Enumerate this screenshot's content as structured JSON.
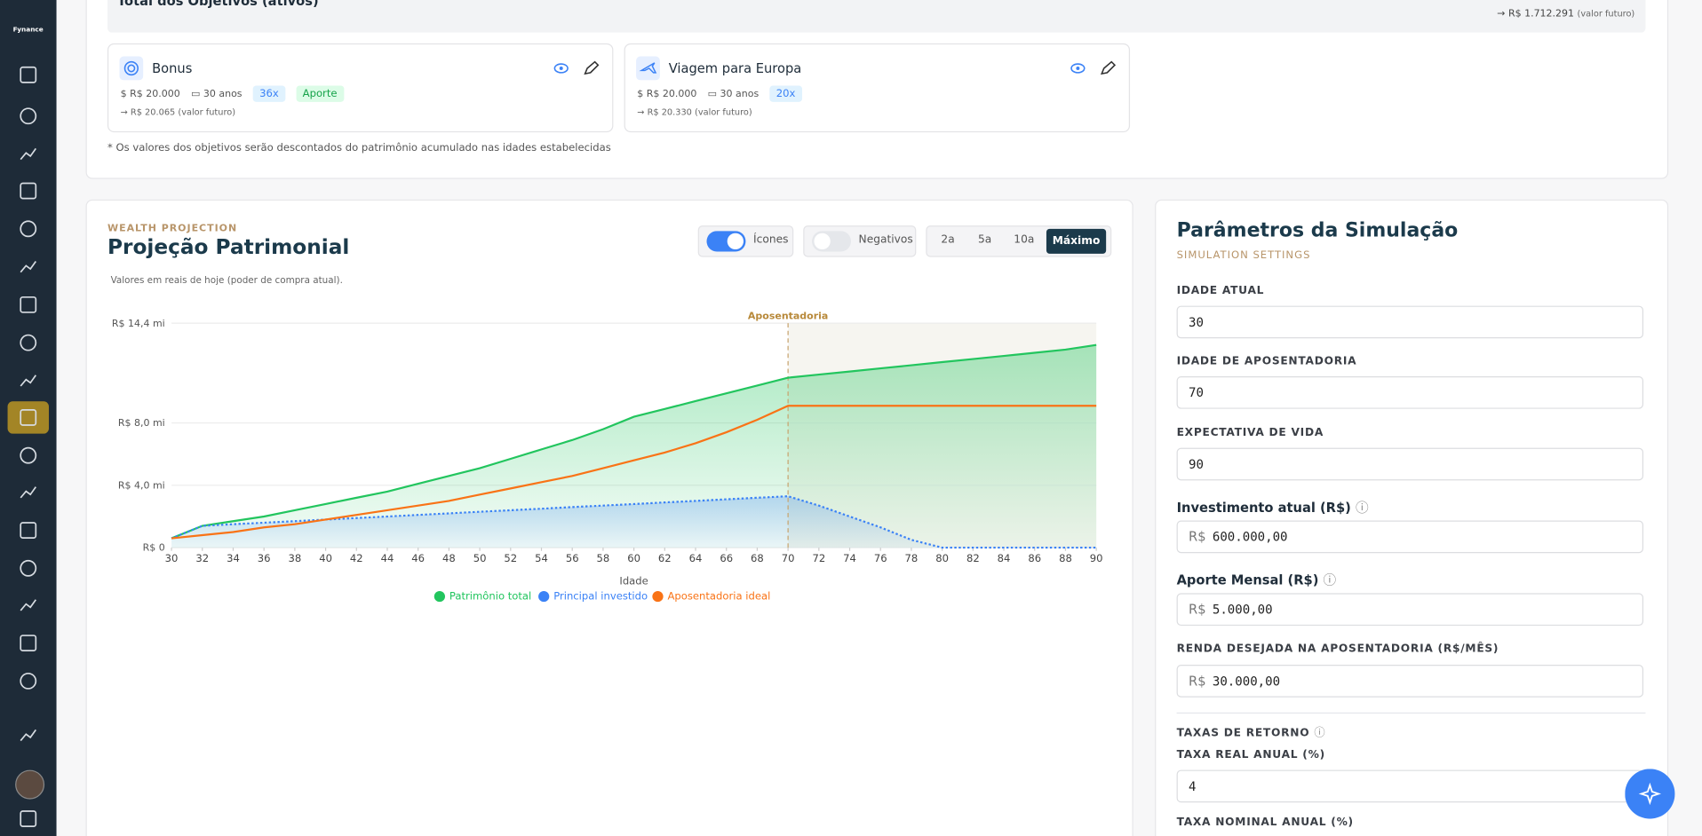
{
  "sidebar": {
    "brand": "Fynance"
  },
  "goals": {
    "title": "Total dos Objetivos (ativos)",
    "total": "→ R$ 1.712.291",
    "total_note": "(valor futuro)",
    "cards": [
      {
        "name": "Bonus",
        "amount": "R$ 20.000",
        "term": "30 anos",
        "count": "36x",
        "tag": "Aporte",
        "future": "→ R$ 20.065",
        "future_note": "(valor futuro)"
      },
      {
        "name": "Viagem para Europa",
        "amount": "R$ 20.000",
        "term": "30 anos",
        "count": "20x",
        "future": "→ R$ 20.330",
        "future_note": "(valor futuro)"
      }
    ],
    "footnote": "* Os valores dos objetivos serão descontados do patrimônio acumulado nas idades estabelecidas"
  },
  "projection": {
    "eyebrow": "WEALTH PROJECTION",
    "title": "Projeção Patrimonial",
    "toggles": [
      "Ícones",
      "Negativos"
    ],
    "ranges": [
      "2a",
      "5a",
      "10a",
      "Máximo"
    ],
    "note": "Valores em reais de hoje (poder de compra atual)."
  },
  "chart_data": {
    "type": "line",
    "x_label": "Idade",
    "x": [
      30,
      32,
      34,
      36,
      38,
      40,
      42,
      44,
      46,
      48,
      50,
      52,
      54,
      56,
      58,
      60,
      62,
      64,
      66,
      68,
      70,
      72,
      74,
      76,
      78,
      80,
      82,
      84,
      86,
      88,
      90
    ],
    "xlim": [
      30,
      90
    ],
    "xticks": [
      30,
      32,
      34,
      36,
      38,
      40,
      42,
      44,
      46,
      48,
      50,
      52,
      54,
      56,
      58,
      60,
      62,
      64,
      66,
      68,
      70,
      72,
      74,
      76,
      78,
      80,
      82,
      84,
      86,
      88,
      90
    ],
    "ylim": [
      0,
      14.4
    ],
    "yticks": [
      {
        "value": 0,
        "label": "R$ 0"
      },
      {
        "value": 4,
        "label": "R$ 4,0 mi"
      },
      {
        "value": 8,
        "label": "R$ 8,0 mi"
      },
      {
        "value": 14.4,
        "label": "R$ 14,4 mi"
      }
    ],
    "grid": true,
    "legend": "bottom",
    "annotation": {
      "text": "Aposentadoria",
      "x": 70
    },
    "series": [
      {
        "name": "Patrimônio total",
        "color": "#22c55e",
        "values": [
          0.6,
          1.4,
          1.7,
          2.0,
          2.4,
          2.8,
          3.2,
          3.6,
          4.1,
          4.6,
          5.1,
          5.7,
          6.3,
          6.9,
          7.6,
          8.4,
          8.9,
          9.4,
          9.9,
          10.4,
          10.9,
          11.1,
          11.3,
          11.5,
          11.7,
          11.9,
          12.1,
          12.3,
          12.5,
          12.7,
          13.0
        ]
      },
      {
        "name": "Principal investido",
        "color": "#3b82f6",
        "values": [
          0.6,
          1.4,
          1.5,
          1.6,
          1.7,
          1.8,
          1.9,
          2.0,
          2.1,
          2.2,
          2.3,
          2.4,
          2.5,
          2.6,
          2.7,
          2.8,
          2.9,
          3.0,
          3.1,
          3.2,
          3.3,
          2.7,
          2.0,
          1.3,
          0.5,
          0,
          0,
          0,
          0,
          0,
          0
        ]
      },
      {
        "name": "Aposentadoria ideal",
        "color": "#f97316",
        "values": [
          0.6,
          0.8,
          1.0,
          1.3,
          1.5,
          1.8,
          2.1,
          2.4,
          2.7,
          3.0,
          3.4,
          3.8,
          4.2,
          4.6,
          5.1,
          5.6,
          6.1,
          6.7,
          7.4,
          8.2,
          9.1,
          9.1,
          9.1,
          9.1,
          9.1,
          9.1,
          9.1,
          9.1,
          9.1,
          9.1,
          9.1
        ]
      }
    ]
  },
  "params": {
    "title": "Parâmetros da Simulação",
    "subtitle": "SIMULATION SETTINGS",
    "fields": [
      {
        "label": "IDADE ATUAL",
        "value": "30"
      },
      {
        "label": "IDADE DE APOSENTADORIA",
        "value": "70"
      },
      {
        "label": "EXPECTATIVA DE VIDA",
        "value": "90"
      },
      {
        "label": "Investimento atual (R$)",
        "prefix": "R$",
        "value": "600.000,00"
      },
      {
        "label": "Aporte Mensal (R$)",
        "prefix": "R$",
        "value": "5.000,00"
      },
      {
        "label": "RENDA DESEJADA NA APOSENTADORIA (R$/MÊS)",
        "prefix": "R$",
        "value": "30.000,00"
      }
    ],
    "rates_title": "TAXAS DE RETORNO",
    "rate_fields": [
      {
        "label": "TAXA REAL ANUAL (%)",
        "value": "4"
      },
      {
        "label": "TAXA NOMINAL ANUAL (%)"
      }
    ]
  }
}
